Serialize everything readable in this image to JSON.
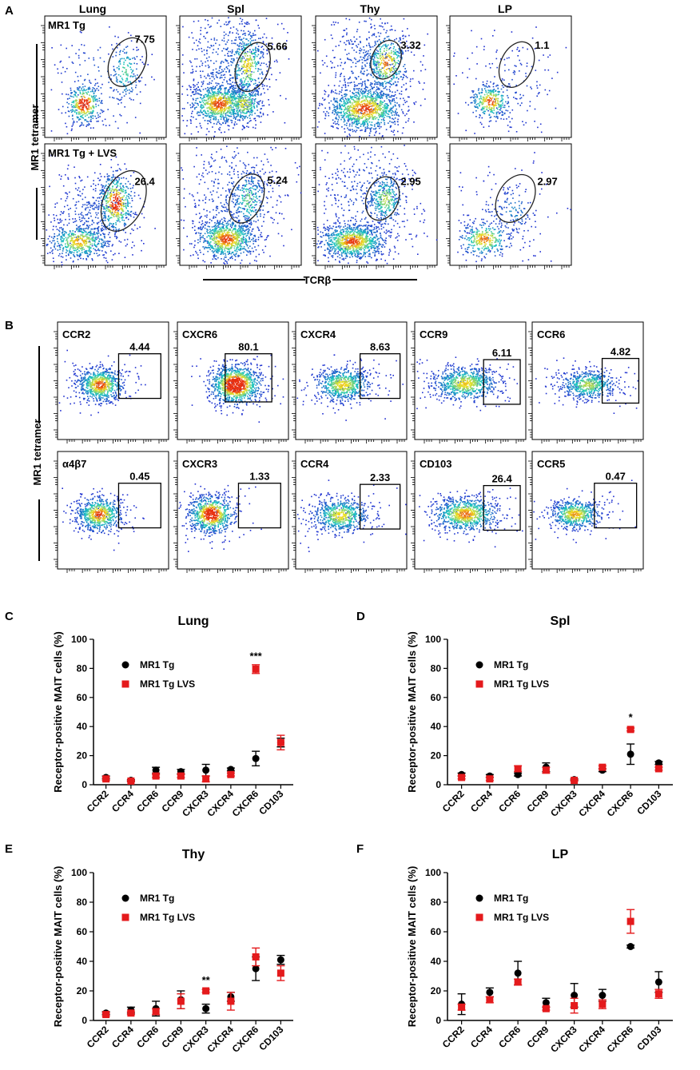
{
  "panel_letters": [
    "A",
    "B",
    "C",
    "D",
    "E",
    "F"
  ],
  "colors": {
    "mr1_tg": "#000000",
    "mr1_tg_lvs": "#e41a1c",
    "flow_low": "#1f2bd1",
    "flow_mid": "#18c8c0",
    "flow_high": "#f0e020",
    "flow_peak": "#e83010"
  },
  "panel_a": {
    "column_headers": [
      "Lung",
      "Spl",
      "Thy",
      "LP"
    ],
    "row_labels": [
      "MR1 Tg",
      "MR1 Tg + LVS"
    ],
    "y_axis_label": "MR1 tetramer",
    "x_axis_label": "TCRβ",
    "gate_values": [
      [
        "7.75",
        "5.66",
        "3.32",
        "1.1"
      ],
      [
        "26.4",
        "5.24",
        "2.95",
        "2.97"
      ]
    ]
  },
  "panel_b": {
    "y_axis_label": "MR1 tetramer",
    "plots": [
      {
        "label": "CCR2",
        "value": "4.44"
      },
      {
        "label": "CXCR6",
        "value": "80.1"
      },
      {
        "label": "CXCR4",
        "value": "8.63"
      },
      {
        "label": "CCR9",
        "value": "6.11"
      },
      {
        "label": "CCR6",
        "value": "4.82"
      },
      {
        "label": "α4β7",
        "value": "0.45"
      },
      {
        "label": "CXCR3",
        "value": "1.33"
      },
      {
        "label": "CCR4",
        "value": "2.33"
      },
      {
        "label": "CD103",
        "value": "26.4"
      },
      {
        "label": "CCR5",
        "value": "0.47"
      }
    ]
  },
  "chart_data": [
    {
      "panel": "C",
      "type": "scatter",
      "title": "Lung",
      "ylabel": "Receptor-positive MAIT cells (%)",
      "xlabel": "",
      "ylim": [
        0,
        100
      ],
      "yticks": [
        0,
        20,
        40,
        60,
        80,
        100
      ],
      "categories": [
        "CCR2",
        "CCR4",
        "CCR6",
        "CCR9",
        "CXCR3",
        "CXCR4",
        "CXCR6",
        "CD103"
      ],
      "legend_position": "top-left",
      "series": [
        {
          "name": "MR1 Tg",
          "marker": "circle",
          "values": [
            5,
            3,
            10,
            9,
            10,
            10.5,
            18,
            29
          ],
          "errors": [
            1,
            0.5,
            2,
            1.5,
            4,
            1,
            5,
            3
          ]
        },
        {
          "name": "MR1 Tg LVS",
          "marker": "square",
          "values": [
            4,
            2.5,
            6,
            6,
            4,
            7,
            79.5,
            29
          ],
          "errors": [
            1,
            0.5,
            1,
            1,
            2,
            1,
            3,
            5
          ]
        }
      ],
      "annotations": [
        {
          "category": "CXCR6",
          "text": "***",
          "y": 86
        }
      ]
    },
    {
      "panel": "D",
      "type": "scatter",
      "title": "Spl",
      "ylabel": "Receptor-positive MAIT cells (%)",
      "xlabel": "",
      "ylim": [
        0,
        100
      ],
      "yticks": [
        0,
        20,
        40,
        60,
        80,
        100
      ],
      "categories": [
        "CCR2",
        "CCR4",
        "CCR6",
        "CCR9",
        "CXCR3",
        "CXCR4",
        "CXCR6",
        "CD103"
      ],
      "legend_position": "top-left",
      "series": [
        {
          "name": "MR1 Tg",
          "marker": "circle",
          "values": [
            7,
            6,
            7,
            12,
            3.5,
            10,
            21,
            15
          ],
          "errors": [
            1,
            1,
            1,
            3,
            0.5,
            1,
            7,
            1
          ]
        },
        {
          "name": "MR1 Tg LVS",
          "marker": "square",
          "values": [
            5,
            4,
            11,
            10,
            3,
            12,
            38,
            11
          ],
          "errors": [
            1,
            1,
            2,
            2,
            0.5,
            1,
            1,
            1
          ]
        }
      ],
      "annotations": [
        {
          "category": "CXCR6",
          "text": "*",
          "y": 44
        }
      ]
    },
    {
      "panel": "E",
      "type": "scatter",
      "title": "Thy",
      "ylabel": "Receptor-positive MAIT cells (%)",
      "xlabel": "",
      "ylim": [
        0,
        100
      ],
      "yticks": [
        0,
        20,
        40,
        60,
        80,
        100
      ],
      "categories": [
        "CCR2",
        "CCR4",
        "CCR6",
        "CCR9",
        "CXCR3",
        "CXCR4",
        "CXCR6",
        "CD103"
      ],
      "legend_position": "top-left",
      "series": [
        {
          "name": "MR1 Tg",
          "marker": "circle",
          "values": [
            5,
            7,
            8,
            14,
            8,
            16,
            35,
            41
          ],
          "errors": [
            1,
            2,
            5,
            6,
            3,
            3,
            8,
            3
          ]
        },
        {
          "name": "MR1 Tg LVS",
          "marker": "square",
          "values": [
            4,
            5,
            6,
            13,
            20,
            13,
            43,
            32
          ],
          "errors": [
            1,
            1,
            2,
            5,
            1,
            6,
            6,
            5
          ]
        }
      ],
      "annotations": [
        {
          "category": "CXCR3",
          "text": "**",
          "y": 25
        }
      ]
    },
    {
      "panel": "F",
      "type": "scatter",
      "title": "LP",
      "ylabel": "Receptor-positive MAIT cells (%)",
      "xlabel": "",
      "ylim": [
        0,
        100
      ],
      "yticks": [
        0,
        20,
        40,
        60,
        80,
        100
      ],
      "categories": [
        "CCR2",
        "CCR4",
        "CCR6",
        "CCR9",
        "CXCR3",
        "CXCR4",
        "CXCR6",
        "CD103"
      ],
      "legend_position": "top-left",
      "series": [
        {
          "name": "MR1 Tg",
          "marker": "circle",
          "values": [
            11,
            19,
            32,
            12,
            17,
            17,
            50,
            26
          ],
          "errors": [
            7,
            3,
            8,
            3,
            8,
            4,
            1,
            7
          ]
        },
        {
          "name": "MR1 Tg LVS",
          "marker": "square",
          "values": [
            9,
            14,
            26,
            8,
            10,
            11,
            67,
            18
          ],
          "errors": [
            2,
            2,
            2,
            1,
            5,
            3,
            8,
            3
          ]
        }
      ],
      "annotations": []
    }
  ]
}
